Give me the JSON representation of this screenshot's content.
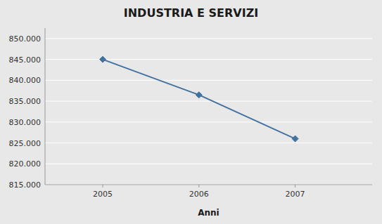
{
  "chart_data": {
    "type": "line",
    "title": "INDUSTRIA E SERVIZI",
    "xlabel": "Anni",
    "x": [
      2005,
      2006,
      2007
    ],
    "values": [
      845000,
      836500,
      826000
    ],
    "color": "#4472a0",
    "marker": "diamond",
    "xlim": [
      2004.4,
      2007.8
    ],
    "xticks": [
      2005,
      2006,
      2007
    ],
    "ylim": [
      815000,
      852500
    ],
    "yticks": [
      {
        "value": 815000,
        "label": "815.000"
      },
      {
        "value": 820000,
        "label": "820.000"
      },
      {
        "value": 825000,
        "label": "825.000"
      },
      {
        "value": 830000,
        "label": "830.000"
      },
      {
        "value": 835000,
        "label": "835.000"
      },
      {
        "value": 840000,
        "label": "840.000"
      },
      {
        "value": 845000,
        "label": "845.000"
      },
      {
        "value": 850000,
        "label": "850.000"
      }
    ],
    "grid": true
  }
}
